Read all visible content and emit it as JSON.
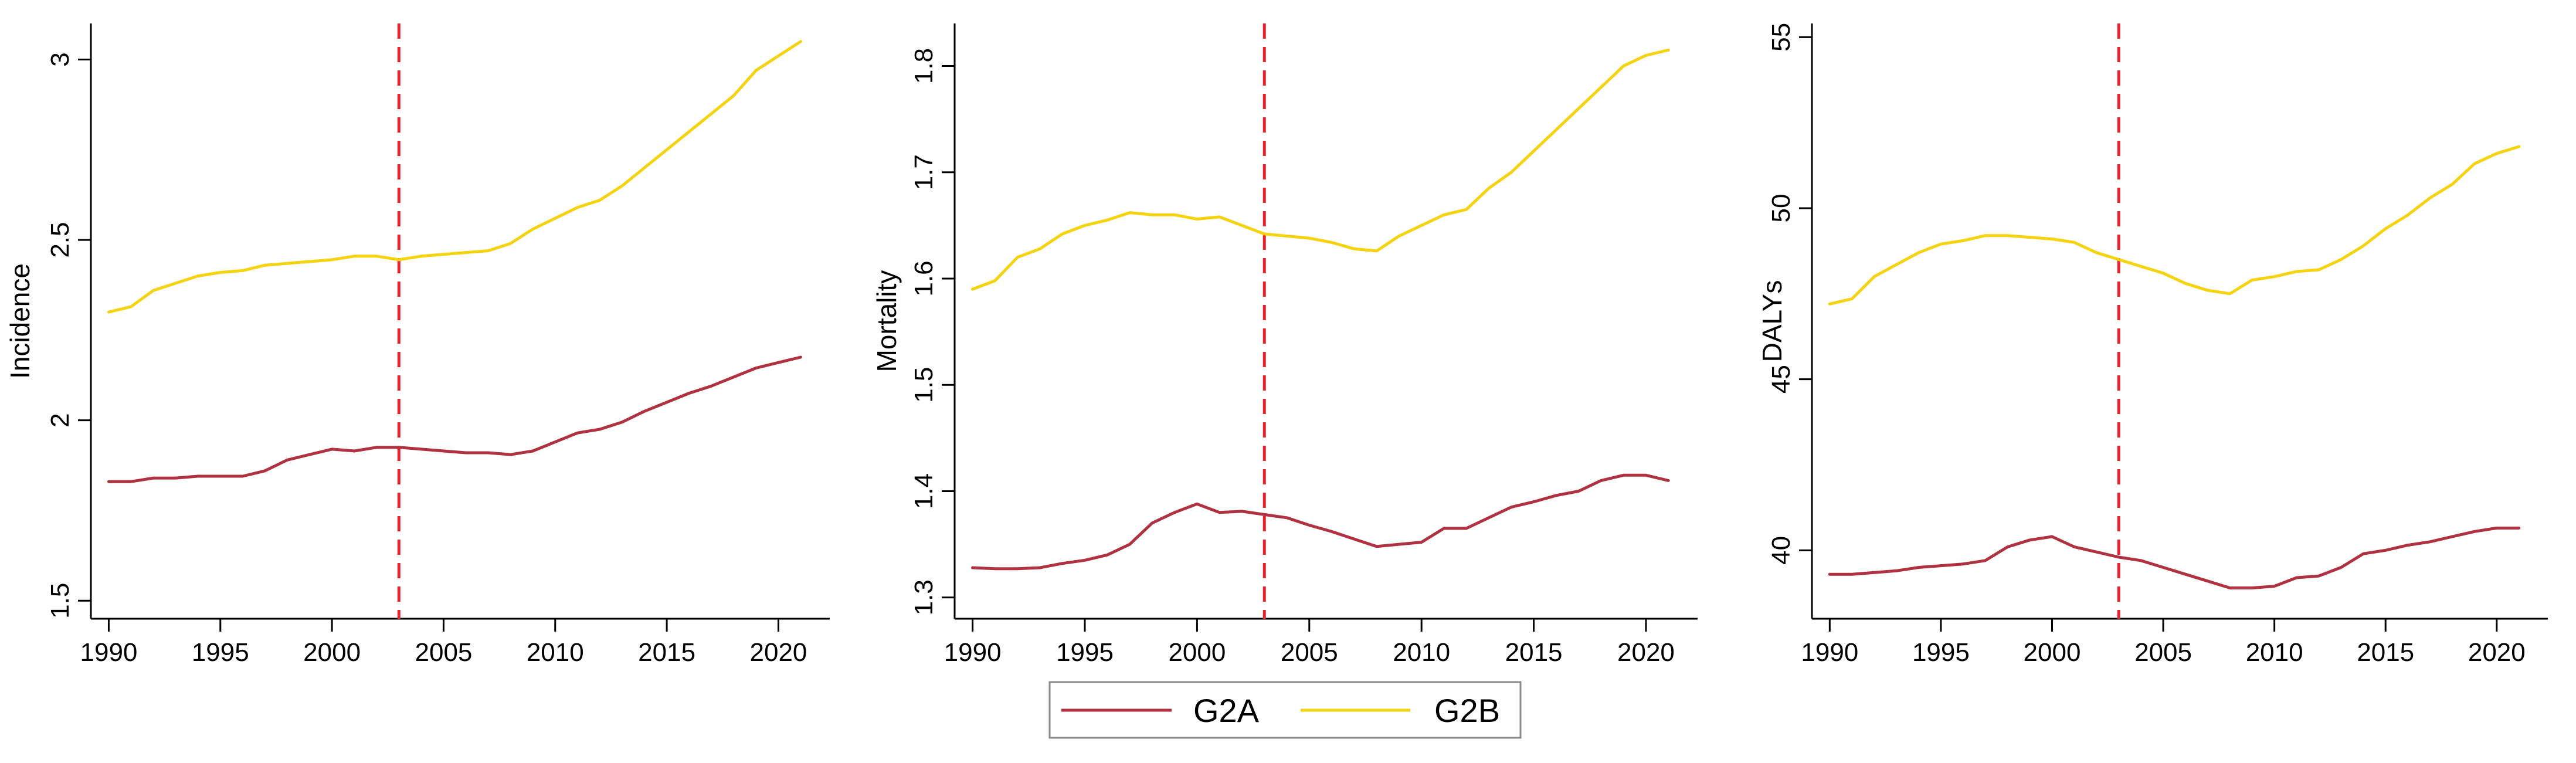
{
  "colors": {
    "g2a": "#b0313f",
    "g2b": "#f5d311",
    "reference_line": "#e8232f",
    "axis": "#000000",
    "text": "#000000"
  },
  "legend": {
    "items": [
      {
        "label": "G2A",
        "color": "#b0313f"
      },
      {
        "label": "G2B",
        "color": "#f5d311"
      }
    ]
  },
  "chart_data": [
    {
      "type": "line",
      "title": "",
      "xlabel": "",
      "ylabel": "Incidence",
      "xlim": [
        1989.2,
        2022.3
      ],
      "ylim": [
        1.45,
        3.1
      ],
      "xticks": [
        1990,
        1995,
        2000,
        2005,
        2010,
        2015,
        2020
      ],
      "yticks": [
        1.5,
        2,
        2.5,
        3
      ],
      "ytick_labels": [
        "1.5",
        "2",
        "2.5",
        "3"
      ],
      "reference_x": 2003,
      "x": [
        1990,
        1991,
        1992,
        1993,
        1994,
        1995,
        1996,
        1997,
        1998,
        1999,
        2000,
        2001,
        2002,
        2003,
        2004,
        2005,
        2006,
        2007,
        2008,
        2009,
        2010,
        2011,
        2012,
        2013,
        2014,
        2015,
        2016,
        2017,
        2018,
        2019,
        2020,
        2021
      ],
      "series": [
        {
          "name": "G2A",
          "values": [
            1.83,
            1.83,
            1.84,
            1.84,
            1.845,
            1.845,
            1.845,
            1.86,
            1.89,
            1.905,
            1.92,
            1.915,
            1.925,
            1.925,
            1.92,
            1.915,
            1.91,
            1.91,
            1.905,
            1.915,
            1.94,
            1.965,
            1.975,
            1.995,
            2.025,
            2.05,
            2.075,
            2.095,
            2.12,
            2.145,
            2.16,
            2.175
          ]
        },
        {
          "name": "G2B",
          "values": [
            2.3,
            2.315,
            2.36,
            2.38,
            2.4,
            2.41,
            2.415,
            2.43,
            2.435,
            2.44,
            2.445,
            2.455,
            2.455,
            2.445,
            2.455,
            2.46,
            2.465,
            2.47,
            2.49,
            2.53,
            2.56,
            2.59,
            2.61,
            2.65,
            2.7,
            2.75,
            2.8,
            2.85,
            2.9,
            2.97,
            3.01,
            3.05
          ]
        }
      ]
    },
    {
      "type": "line",
      "title": "",
      "xlabel": "",
      "ylabel": "Mortality",
      "xlim": [
        1989.2,
        2022.3
      ],
      "ylim": [
        1.28,
        1.84
      ],
      "xticks": [
        1990,
        1995,
        2000,
        2005,
        2010,
        2015,
        2020
      ],
      "yticks": [
        1.3,
        1.4,
        1.5,
        1.6,
        1.7,
        1.8
      ],
      "ytick_labels": [
        "1.3",
        "1.4",
        "1.5",
        "1.6",
        "1.7",
        "1.8"
      ],
      "reference_x": 2003,
      "x": [
        1990,
        1991,
        1992,
        1993,
        1994,
        1995,
        1996,
        1997,
        1998,
        1999,
        2000,
        2001,
        2002,
        2003,
        2004,
        2005,
        2006,
        2007,
        2008,
        2009,
        2010,
        2011,
        2012,
        2013,
        2014,
        2015,
        2016,
        2017,
        2018,
        2019,
        2020,
        2021
      ],
      "series": [
        {
          "name": "G2A",
          "values": [
            1.328,
            1.327,
            1.327,
            1.328,
            1.332,
            1.335,
            1.34,
            1.35,
            1.37,
            1.38,
            1.388,
            1.38,
            1.381,
            1.378,
            1.375,
            1.368,
            1.362,
            1.355,
            1.348,
            1.35,
            1.352,
            1.365,
            1.365,
            1.375,
            1.385,
            1.39,
            1.396,
            1.4,
            1.41,
            1.415,
            1.415,
            1.41
          ]
        },
        {
          "name": "G2B",
          "values": [
            1.59,
            1.598,
            1.62,
            1.628,
            1.642,
            1.65,
            1.655,
            1.662,
            1.66,
            1.66,
            1.656,
            1.658,
            1.65,
            1.642,
            1.64,
            1.638,
            1.634,
            1.628,
            1.626,
            1.64,
            1.65,
            1.66,
            1.665,
            1.685,
            1.7,
            1.72,
            1.74,
            1.76,
            1.78,
            1.8,
            1.81,
            1.815
          ]
        }
      ]
    },
    {
      "type": "line",
      "title": "",
      "xlabel": "",
      "ylabel": "DALYs",
      "xlim": [
        1989.2,
        2022.3
      ],
      "ylim": [
        38.0,
        55.4
      ],
      "xticks": [
        1990,
        1995,
        2000,
        2005,
        2010,
        2015,
        2020
      ],
      "yticks": [
        40,
        45,
        50,
        55
      ],
      "ytick_labels": [
        "40",
        "45",
        "50",
        "55"
      ],
      "reference_x": 2003,
      "x": [
        1990,
        1991,
        1992,
        1993,
        1994,
        1995,
        1996,
        1997,
        1998,
        1999,
        2000,
        2001,
        2002,
        2003,
        2004,
        2005,
        2006,
        2007,
        2008,
        2009,
        2010,
        2011,
        2012,
        2013,
        2014,
        2015,
        2016,
        2017,
        2018,
        2019,
        2020,
        2021
      ],
      "series": [
        {
          "name": "G2A",
          "values": [
            39.3,
            39.3,
            39.35,
            39.4,
            39.5,
            39.55,
            39.6,
            39.7,
            40.1,
            40.3,
            40.4,
            40.1,
            39.95,
            39.8,
            39.7,
            39.5,
            39.3,
            39.1,
            38.9,
            38.9,
            38.95,
            39.2,
            39.25,
            39.5,
            39.9,
            40.0,
            40.15,
            40.25,
            40.4,
            40.55,
            40.65,
            40.65
          ]
        },
        {
          "name": "G2B",
          "values": [
            47.2,
            47.35,
            48.0,
            48.35,
            48.7,
            48.95,
            49.05,
            49.2,
            49.2,
            49.15,
            49.1,
            49.0,
            48.7,
            48.5,
            48.3,
            48.1,
            47.8,
            47.6,
            47.5,
            47.9,
            48.0,
            48.15,
            48.2,
            48.5,
            48.9,
            49.4,
            49.8,
            50.3,
            50.7,
            51.3,
            51.6,
            51.8
          ]
        }
      ]
    }
  ]
}
